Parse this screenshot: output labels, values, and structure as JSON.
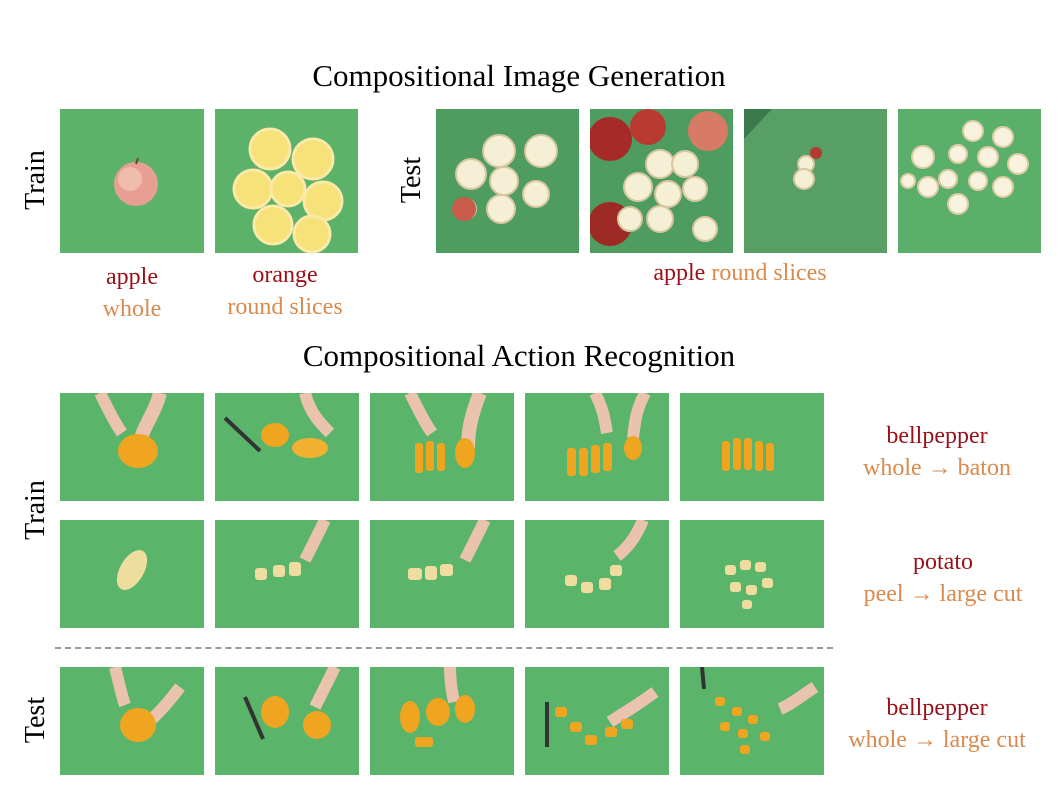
{
  "gen": {
    "title": "Compositional Image Generation",
    "train_label": "Train",
    "test_label": "Test",
    "train_captions": [
      {
        "object": "apple",
        "state": "whole"
      },
      {
        "object": "orange",
        "state": "round slices"
      }
    ],
    "test_caption": {
      "object": "apple",
      "state": "round slices"
    }
  },
  "act": {
    "title": "Compositional Action Recognition",
    "train_label": "Train",
    "test_label": "Test",
    "rows": [
      {
        "object": "bellpepper",
        "action": "whole → baton"
      },
      {
        "object": "potato",
        "action": "peel → large cut"
      },
      {
        "object": "bellpepper",
        "action": "whole → large cut"
      }
    ]
  },
  "colors": {
    "object": "#9b1018",
    "state": "#d98a4c",
    "board": "#5fb56a"
  }
}
